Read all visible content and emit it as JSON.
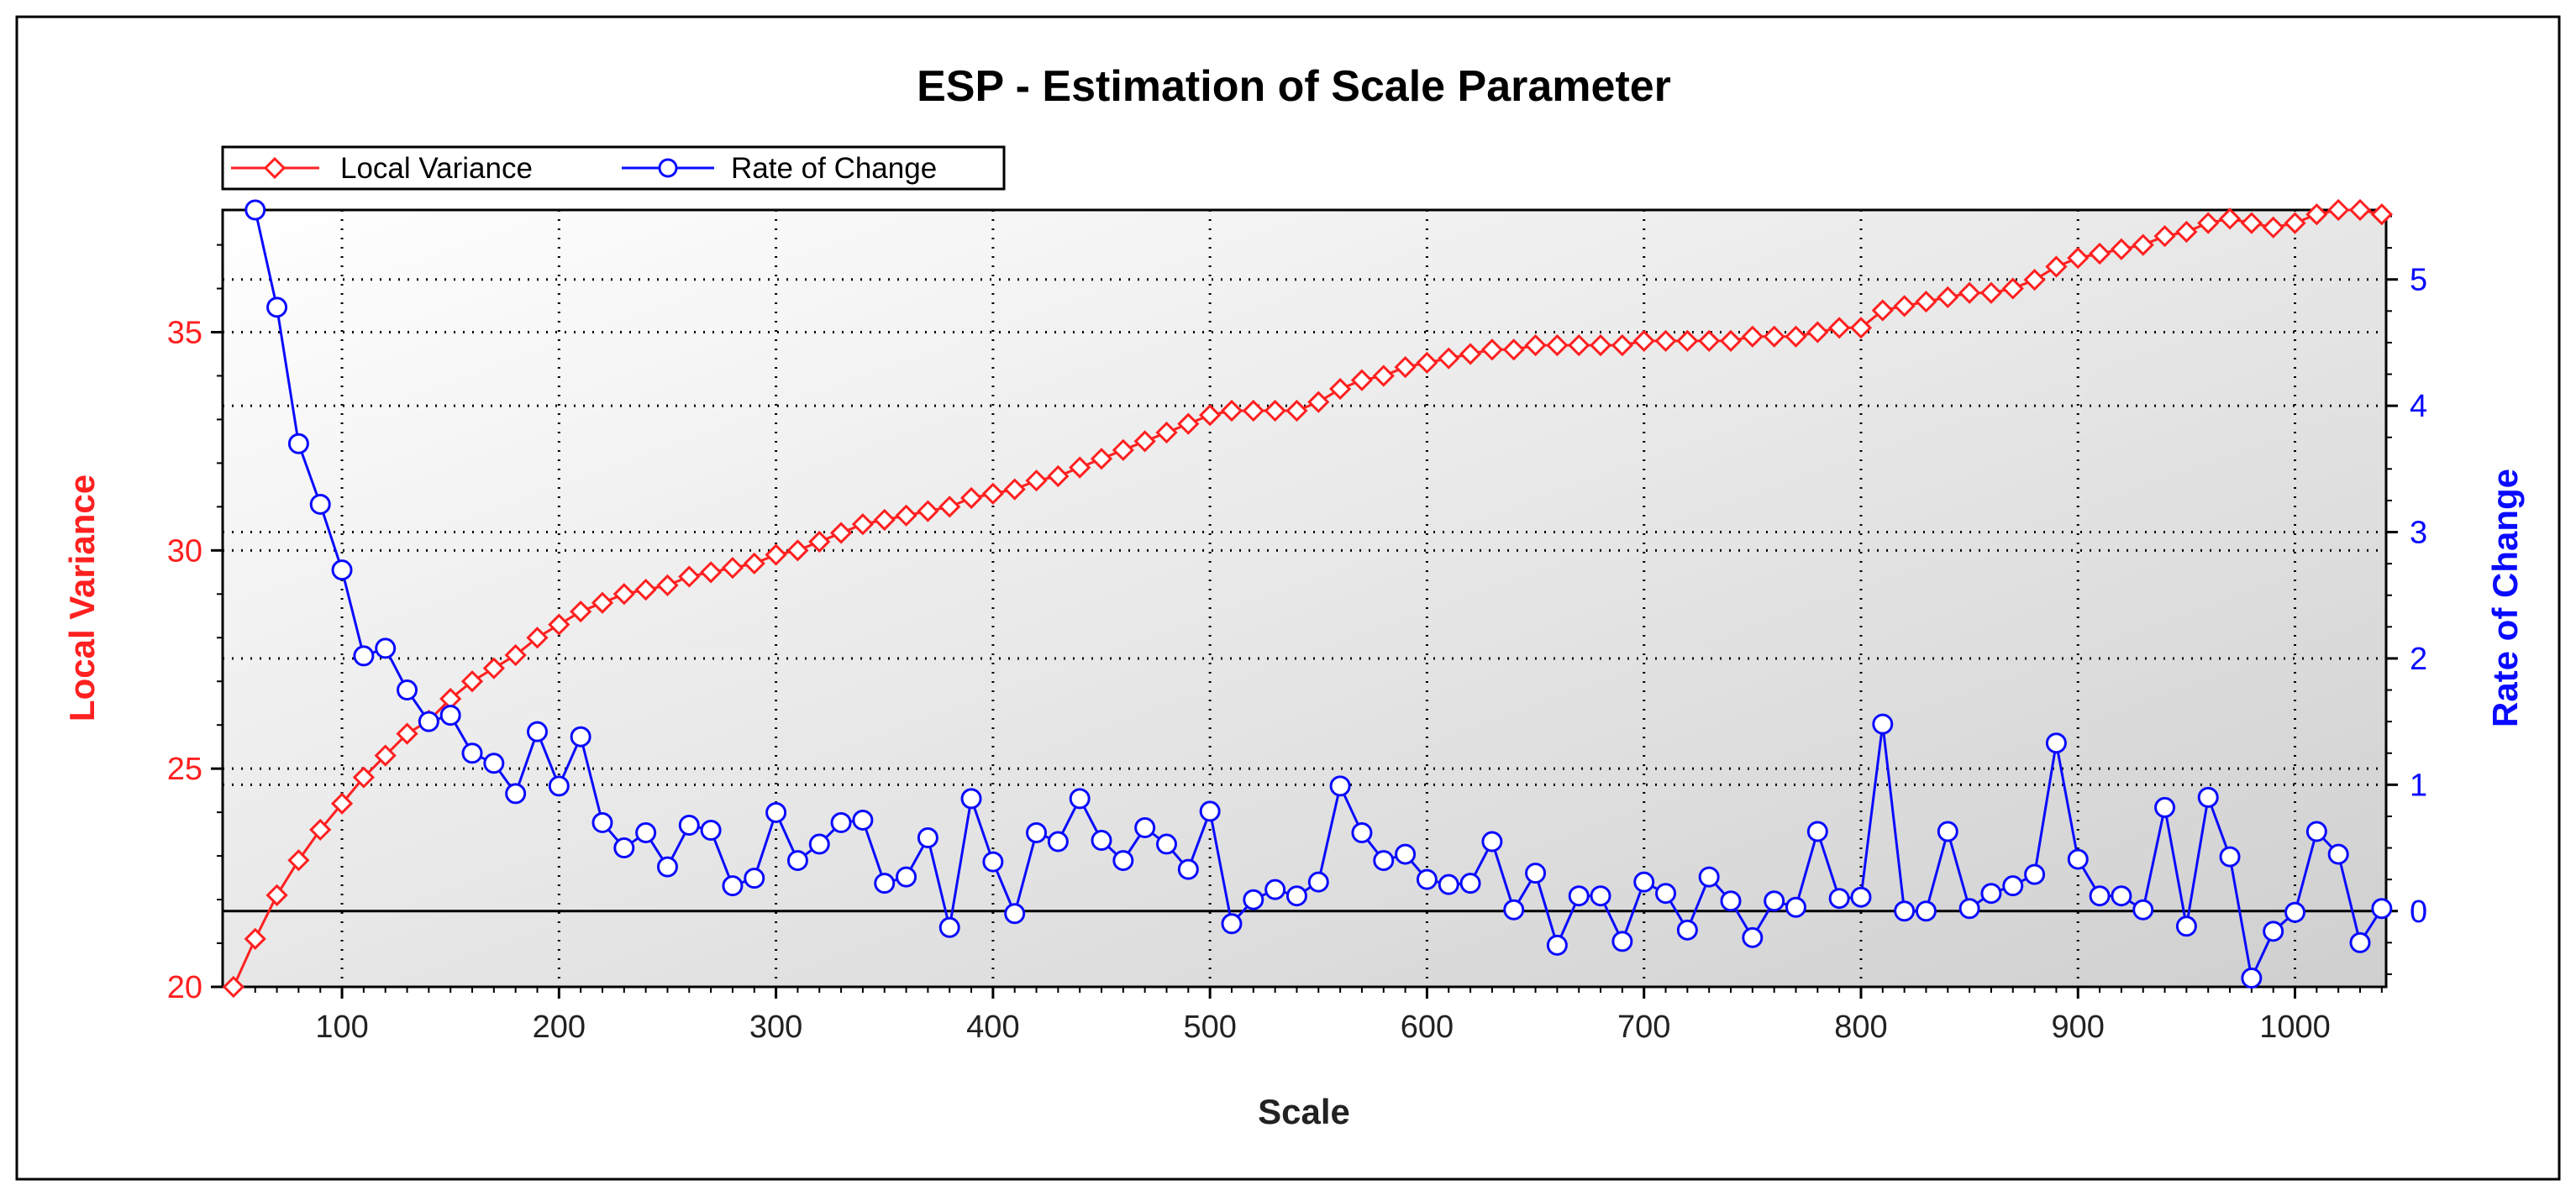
{
  "chart_data": {
    "type": "line",
    "title": "ESP - Estimation of Scale Parameter",
    "xlabel": "Scale",
    "ylabel_left": "Local Variance",
    "ylabel_right": "Rate of Change",
    "xlim": [
      45,
      1042
    ],
    "ylim_left": [
      20,
      37.8
    ],
    "ylim_right": [
      -0.6,
      5.55
    ],
    "x_ticks": [
      100,
      200,
      300,
      400,
      500,
      600,
      700,
      800,
      900,
      1000
    ],
    "y_left_ticks": [
      20,
      25,
      30,
      35
    ],
    "y_right_ticks": [
      0,
      1,
      2,
      3,
      4,
      5
    ],
    "grid": true,
    "legend_position": "top-left",
    "reference_line_right": 0,
    "colors": {
      "left_axis": "#ff2020",
      "right_axis": "#0a0aff",
      "local_variance": "#ff2020",
      "rate_of_change": "#0a0aff"
    },
    "series": [
      {
        "name": "Local Variance",
        "axis": "left",
        "marker": "diamond",
        "x": [
          50,
          60,
          70,
          80,
          90,
          100,
          110,
          120,
          130,
          140,
          150,
          160,
          170,
          180,
          190,
          200,
          210,
          220,
          230,
          240,
          250,
          260,
          270,
          280,
          290,
          300,
          310,
          320,
          330,
          340,
          350,
          360,
          370,
          380,
          390,
          400,
          410,
          420,
          430,
          440,
          450,
          460,
          470,
          480,
          490,
          500,
          510,
          520,
          530,
          540,
          550,
          560,
          570,
          580,
          590,
          600,
          610,
          620,
          630,
          640,
          650,
          660,
          670,
          680,
          690,
          700,
          710,
          720,
          730,
          740,
          750,
          760,
          770,
          780,
          790,
          800,
          810,
          820,
          830,
          840,
          850,
          860,
          870,
          880,
          890,
          900,
          910,
          920,
          930,
          940,
          950,
          960,
          970,
          980,
          990,
          1000,
          1010,
          1020,
          1030,
          1040
        ],
        "values": [
          20.0,
          21.1,
          22.1,
          22.9,
          23.6,
          24.2,
          24.8,
          25.3,
          25.8,
          26.1,
          26.6,
          27.0,
          27.3,
          27.6,
          28.0,
          28.3,
          28.6,
          28.8,
          29.0,
          29.1,
          29.2,
          29.4,
          29.5,
          29.6,
          29.7,
          29.9,
          30.0,
          30.2,
          30.4,
          30.6,
          30.7,
          30.8,
          30.9,
          31.0,
          31.2,
          31.3,
          31.4,
          31.6,
          31.7,
          31.9,
          32.1,
          32.3,
          32.5,
          32.7,
          32.9,
          33.1,
          33.2,
          33.2,
          33.2,
          33.2,
          33.4,
          33.7,
          33.9,
          34.0,
          34.2,
          34.3,
          34.4,
          34.5,
          34.6,
          34.6,
          34.7,
          34.7,
          34.7,
          34.7,
          34.7,
          34.8,
          34.8,
          34.8,
          34.8,
          34.8,
          34.9,
          34.9,
          34.9,
          35.0,
          35.1,
          35.1,
          35.5,
          35.6,
          35.7,
          35.8,
          35.9,
          35.9,
          36.0,
          36.2,
          36.5,
          36.7,
          36.8,
          36.9,
          37.0,
          37.2,
          37.3,
          37.5,
          37.6,
          37.5,
          37.4,
          37.5,
          37.7,
          37.8,
          37.8,
          37.7
        ]
      },
      {
        "name": "Rate of Change",
        "axis": "right",
        "marker": "circle",
        "x": [
          60,
          70,
          80,
          90,
          100,
          110,
          120,
          130,
          140,
          150,
          160,
          170,
          180,
          190,
          200,
          210,
          220,
          230,
          240,
          250,
          260,
          270,
          280,
          290,
          300,
          310,
          320,
          330,
          340,
          350,
          360,
          370,
          380,
          390,
          400,
          410,
          420,
          430,
          440,
          450,
          460,
          470,
          480,
          490,
          500,
          510,
          520,
          530,
          540,
          550,
          560,
          570,
          580,
          590,
          600,
          610,
          620,
          630,
          640,
          650,
          660,
          670,
          680,
          690,
          700,
          710,
          720,
          730,
          740,
          750,
          760,
          770,
          780,
          790,
          800,
          810,
          820,
          830,
          840,
          850,
          860,
          870,
          880,
          890,
          900,
          910,
          920,
          930,
          940,
          950,
          960,
          970,
          980,
          990,
          1000,
          1010,
          1020,
          1030,
          1040
        ],
        "values": [
          5.55,
          4.78,
          3.7,
          3.22,
          2.7,
          2.02,
          2.08,
          1.75,
          1.5,
          1.55,
          1.25,
          1.17,
          0.93,
          1.42,
          0.99,
          1.38,
          0.7,
          0.5,
          0.62,
          0.35,
          0.68,
          0.64,
          0.2,
          0.26,
          0.78,
          0.4,
          0.53,
          0.7,
          0.72,
          0.22,
          0.27,
          0.58,
          -0.13,
          0.89,
          0.39,
          -0.02,
          0.62,
          0.55,
          0.89,
          0.56,
          0.4,
          0.66,
          0.53,
          0.33,
          0.79,
          -0.1,
          0.09,
          0.17,
          0.12,
          0.23,
          0.99,
          0.62,
          0.4,
          0.45,
          0.25,
          0.21,
          0.22,
          0.55,
          0.01,
          0.3,
          -0.27,
          0.12,
          0.12,
          -0.24,
          0.23,
          0.14,
          -0.15,
          0.27,
          0.08,
          -0.21,
          0.08,
          0.03,
          0.63,
          0.1,
          0.11,
          1.48,
          0.0,
          0.0,
          0.63,
          0.02,
          0.14,
          0.2,
          0.29,
          1.33,
          0.41,
          0.12,
          0.12,
          0.01,
          0.82,
          -0.12,
          0.9,
          0.43,
          -0.53,
          -0.16,
          -0.01,
          0.63,
          0.45,
          -0.25,
          0.02
        ]
      }
    ]
  }
}
